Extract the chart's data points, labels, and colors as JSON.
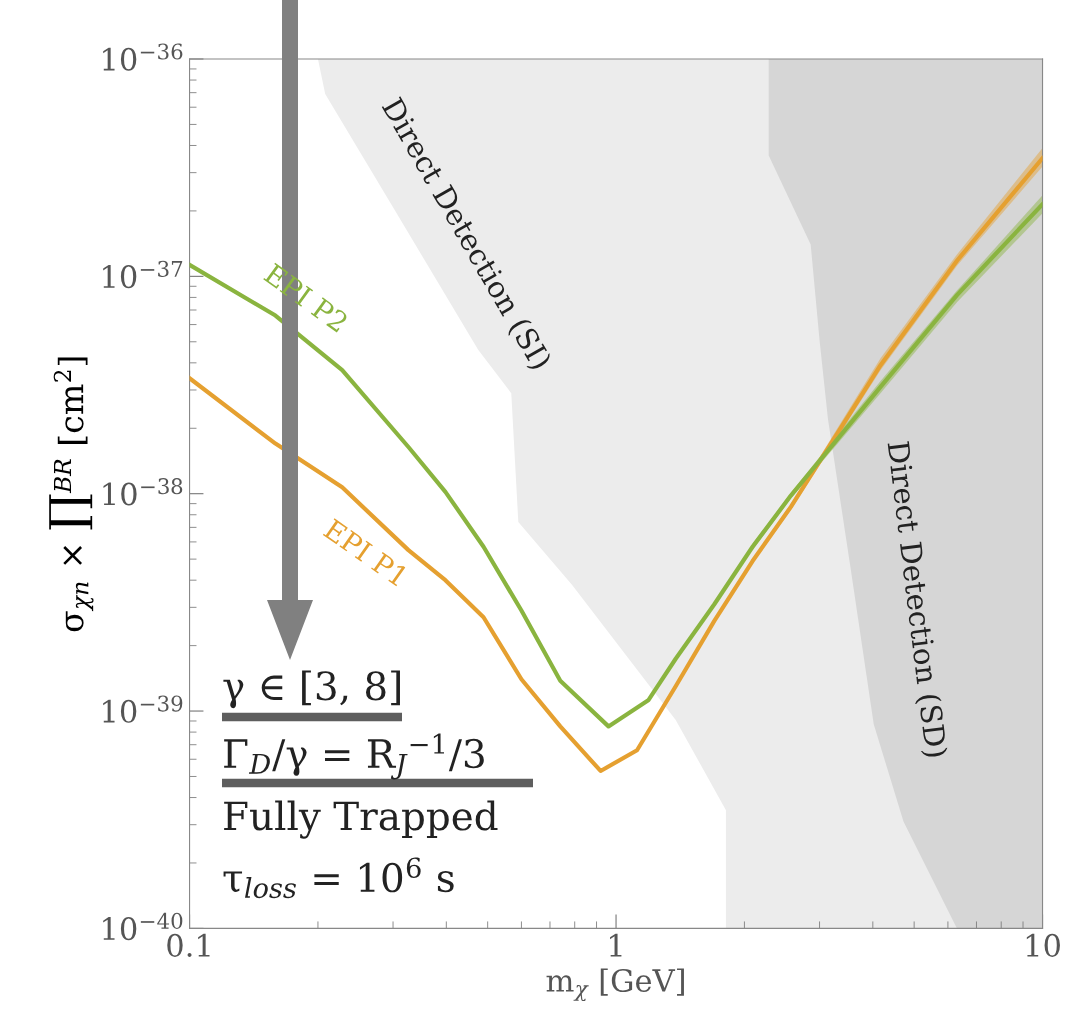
{
  "chart_data": {
    "type": "line",
    "xlabel": "m$_{χ}$ [GeV]",
    "ylabel": "σ$_{χn}$ × ∏$^{BR}$ [cm$^{2}$]",
    "log": "xy",
    "grid": false,
    "xlim": [
      0.1,
      10
    ],
    "xticks": [
      0.1,
      1,
      10
    ],
    "ylim": [
      1e-40,
      1e-36
    ],
    "yticks": [
      {
        "value": 1e-40,
        "label": "10$^{−40}$"
      },
      {
        "value": 1e-39,
        "label": "10$^{−39}$"
      },
      {
        "value": 1e-38,
        "label": "10$^{−38}$"
      },
      {
        "value": 1e-37,
        "label": "10$^{−37}$"
      },
      {
        "value": 1e-36,
        "label": "10$^{−36}$"
      }
    ],
    "series": [
      {
        "type": "area",
        "color": "#ececec",
        "x": [
          0.2,
          0.208,
          0.299,
          0.475,
          0.568,
          0.59,
          0.789,
          1.38,
          1.81,
          1.81,
          10,
          10
        ],
        "values": [
          1e-36,
          6.9e-37,
          2.1e-37,
          4.6e-38,
          2.9e-38,
          7.4e-39,
          3.8e-39,
          9.1e-40,
          3.5e-40,
          1e-40,
          1e-40,
          1e-36
        ]
      },
      {
        "type": "area",
        "color": "#d6d6d6",
        "x": [
          2.28,
          2.28,
          2.86,
          3.0,
          3.14,
          3.55,
          4.02,
          4.72,
          6.3,
          10,
          10
        ],
        "values": [
          1e-36,
          3.6e-37,
          1.4e-37,
          5.1e-38,
          2.2e-38,
          4.5e-39,
          8.7e-40,
          3.1e-40,
          1e-40,
          1e-40,
          1e-36
        ]
      },
      {
        "color": "#e5a030",
        "x": [
          0.1,
          0.159,
          0.228,
          0.326,
          0.398,
          0.489,
          0.6,
          0.74,
          0.92,
          1.12,
          1.38,
          1.7,
          2.09,
          2.57,
          4.17,
          6.3,
          10
        ],
        "values": [
          3.4e-38,
          1.7e-38,
          1.07e-38,
          5.5e-39,
          4e-39,
          2.7e-39,
          1.4e-39,
          8.5e-40,
          5.3e-40,
          6.6e-40,
          1.3e-39,
          2.6e-39,
          4.9e-39,
          8.7e-39,
          3.9e-38,
          1.18e-37,
          3.5e-37
        ],
        "lower": [
          null,
          null,
          null,
          null,
          null,
          null,
          null,
          null,
          null,
          null,
          null,
          null,
          4.8e-39,
          8.4e-39,
          3.7e-38,
          1.12e-37,
          3.2e-37
        ],
        "upper": [
          null,
          null,
          null,
          null,
          null,
          null,
          null,
          null,
          null,
          null,
          null,
          null,
          5e-39,
          9e-39,
          4.2e-38,
          1.26e-37,
          3.9e-37
        ]
      },
      {
        "color": "#8ab43f",
        "x": [
          0.1,
          0.159,
          0.228,
          0.326,
          0.398,
          0.489,
          0.6,
          0.74,
          0.96,
          1.19,
          1.38,
          1.7,
          2.09,
          2.57,
          4.17,
          6.3,
          10
        ],
        "values": [
          1.13e-37,
          6.6e-38,
          3.7e-38,
          1.64e-38,
          1.02e-38,
          5.7e-39,
          2.9e-39,
          1.38e-39,
          8.5e-40,
          1.12e-39,
          1.74e-39,
          3.1e-39,
          5.7e-39,
          9.8e-39,
          3.1e-38,
          8.2e-38,
          2.15e-37
        ],
        "lower": [
          null,
          null,
          null,
          null,
          null,
          null,
          null,
          null,
          null,
          null,
          null,
          null,
          5.5e-39,
          9.5e-39,
          2.9e-38,
          7.6e-38,
          1.95e-37
        ],
        "upper": [
          null,
          null,
          null,
          null,
          null,
          null,
          null,
          null,
          null,
          null,
          null,
          null,
          5.9e-39,
          1.01e-38,
          3.3e-38,
          8.6e-38,
          2.36e-37
        ]
      }
    ],
    "annotations": [
      "EPI P2",
      "EPI P1",
      "Direct Detection (SI)",
      "Direct Detection (SD)",
      "γ ∈ [3, 8]",
      "Γ$_{D}$/γ = R$_{J}$$^{−1}$/3",
      "Fully Trapped",
      "τ$_{loss}$ = 10$^{6}$ s"
    ]
  }
}
